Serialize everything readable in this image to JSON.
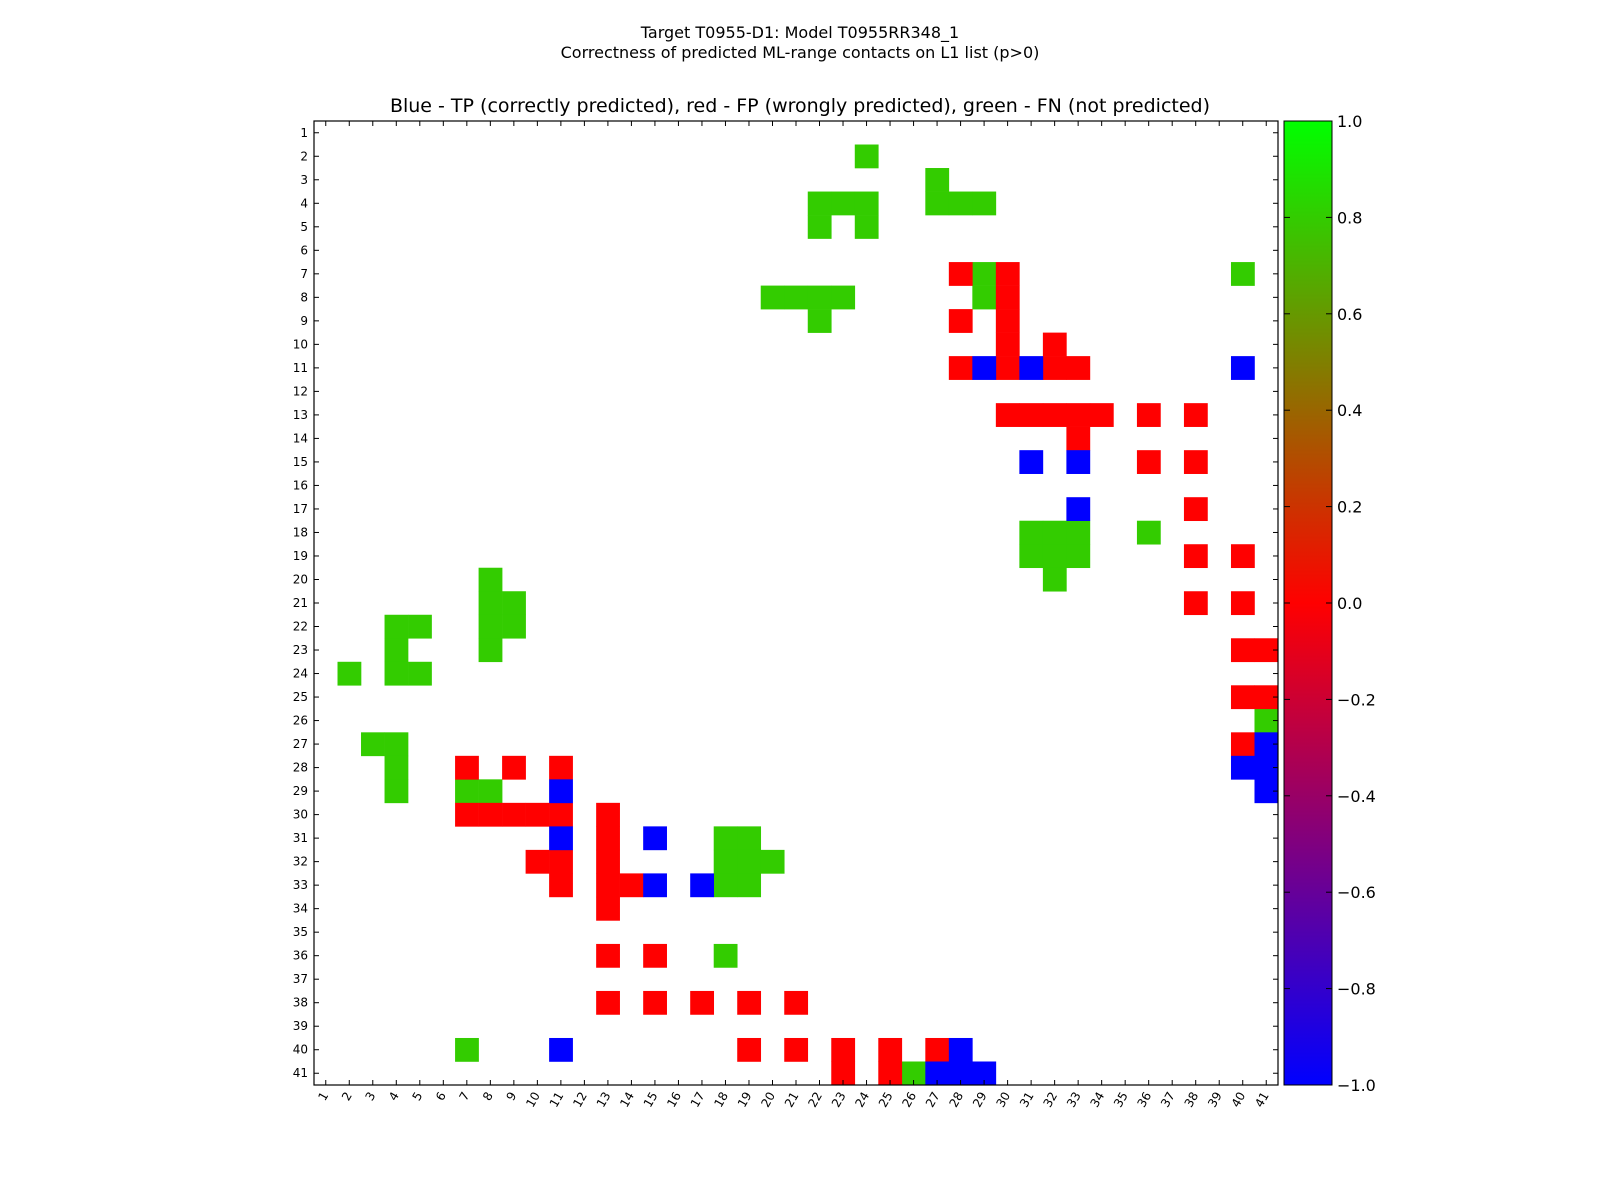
{
  "chart_data": {
    "type": "heatmap",
    "suptitle": "Target T0955-D1: Model T0955RR348_1",
    "subtitle": "Correctness of predicted ML-range contacts on L1 list (p>0)",
    "title": "Blue - TP (correctly predicted), red - FP (wrongly predicted), green - FN (not predicted)",
    "n": 41,
    "x_ticks": [
      "1",
      "2",
      "3",
      "4",
      "5",
      "6",
      "7",
      "8",
      "9",
      "10",
      "11",
      "12",
      "13",
      "14",
      "15",
      "16",
      "17",
      "18",
      "19",
      "20",
      "21",
      "22",
      "23",
      "24",
      "25",
      "26",
      "27",
      "28",
      "29",
      "30",
      "31",
      "32",
      "33",
      "34",
      "35",
      "36",
      "37",
      "38",
      "39",
      "40",
      "41"
    ],
    "y_ticks": [
      "1",
      "2",
      "3",
      "4",
      "5",
      "6",
      "7",
      "8",
      "9",
      "10",
      "11",
      "12",
      "13",
      "14",
      "15",
      "16",
      "17",
      "18",
      "19",
      "20",
      "21",
      "22",
      "23",
      "24",
      "25",
      "26",
      "27",
      "28",
      "29",
      "30",
      "31",
      "32",
      "33",
      "34",
      "35",
      "36",
      "37",
      "38",
      "39",
      "40",
      "41"
    ],
    "colorbar": {
      "min": -1.0,
      "max": 1.0,
      "ticks": [
        "1.0",
        "0.8",
        "0.6",
        "0.4",
        "0.2",
        "0.0",
        "−0.2",
        "−0.4",
        "−0.6",
        "−0.8",
        "−1.0"
      ],
      "stops": [
        {
          "value": -1.0,
          "color": "#0000ff"
        },
        {
          "value": 0.0,
          "color": "#ff0000"
        },
        {
          "value": 1.0,
          "color": "#00ff00"
        }
      ]
    },
    "categories": {
      "tp": {
        "label": "TP (correctly predicted)",
        "value": -1.0,
        "color": "#0000ff"
      },
      "fp": {
        "label": "FP (wrongly predicted)",
        "value": 0.0,
        "color": "#ff0000"
      },
      "fn": {
        "label": "FN (not predicted)",
        "value": 0.8,
        "color": "#33cc00"
      }
    },
    "cells": {
      "fn": [
        [
          2,
          24
        ],
        [
          3,
          27
        ],
        [
          4,
          22
        ],
        [
          4,
          23
        ],
        [
          4,
          24
        ],
        [
          4,
          27
        ],
        [
          4,
          28
        ],
        [
          4,
          29
        ],
        [
          5,
          22
        ],
        [
          5,
          24
        ],
        [
          7,
          29
        ],
        [
          7,
          40
        ],
        [
          8,
          20
        ],
        [
          8,
          21
        ],
        [
          8,
          22
        ],
        [
          8,
          23
        ],
        [
          8,
          29
        ],
        [
          9,
          22
        ],
        [
          18,
          31
        ],
        [
          18,
          32
        ],
        [
          18,
          33
        ],
        [
          18,
          36
        ],
        [
          19,
          31
        ],
        [
          19,
          32
        ],
        [
          19,
          33
        ],
        [
          20,
          32
        ],
        [
          20,
          8
        ],
        [
          21,
          8
        ],
        [
          21,
          9
        ],
        [
          22,
          4
        ],
        [
          22,
          5
        ],
        [
          22,
          8
        ],
        [
          22,
          9
        ],
        [
          23,
          4
        ],
        [
          23,
          8
        ],
        [
          24,
          2
        ],
        [
          24,
          4
        ],
        [
          24,
          5
        ],
        [
          26,
          41
        ],
        [
          27,
          3
        ],
        [
          27,
          4
        ],
        [
          28,
          4
        ],
        [
          29,
          4
        ],
        [
          29,
          7
        ],
        [
          29,
          8
        ],
        [
          31,
          18
        ],
        [
          31,
          19
        ],
        [
          32,
          18
        ],
        [
          32,
          19
        ],
        [
          32,
          20
        ],
        [
          33,
          18
        ],
        [
          33,
          19
        ],
        [
          36,
          18
        ],
        [
          40,
          7
        ],
        [
          41,
          26
        ]
      ],
      "fp": [
        [
          7,
          28
        ],
        [
          7,
          30
        ],
        [
          8,
          30
        ],
        [
          9,
          28
        ],
        [
          9,
          30
        ],
        [
          10,
          30
        ],
        [
          10,
          32
        ],
        [
          11,
          28
        ],
        [
          11,
          30
        ],
        [
          11,
          32
        ],
        [
          11,
          33
        ],
        [
          13,
          30
        ],
        [
          13,
          31
        ],
        [
          13,
          32
        ],
        [
          13,
          33
        ],
        [
          13,
          34
        ],
        [
          13,
          36
        ],
        [
          13,
          38
        ],
        [
          14,
          33
        ],
        [
          15,
          36
        ],
        [
          15,
          38
        ],
        [
          17,
          38
        ],
        [
          19,
          38
        ],
        [
          19,
          40
        ],
        [
          21,
          38
        ],
        [
          21,
          40
        ],
        [
          23,
          40
        ],
        [
          23,
          41
        ],
        [
          25,
          40
        ],
        [
          25,
          41
        ],
        [
          27,
          40
        ],
        [
          28,
          7
        ],
        [
          28,
          9
        ],
        [
          28,
          11
        ],
        [
          30,
          7
        ],
        [
          30,
          8
        ],
        [
          30,
          9
        ],
        [
          30,
          10
        ],
        [
          30,
          11
        ],
        [
          30,
          13
        ],
        [
          31,
          13
        ],
        [
          32,
          10
        ],
        [
          32,
          11
        ],
        [
          32,
          13
        ],
        [
          33,
          11
        ],
        [
          33,
          13
        ],
        [
          33,
          14
        ],
        [
          34,
          13
        ],
        [
          36,
          13
        ],
        [
          36,
          15
        ],
        [
          38,
          13
        ],
        [
          38,
          15
        ],
        [
          38,
          17
        ],
        [
          38,
          19
        ],
        [
          38,
          21
        ],
        [
          40,
          19
        ],
        [
          40,
          21
        ],
        [
          40,
          23
        ],
        [
          40,
          25
        ],
        [
          40,
          27
        ],
        [
          41,
          23
        ],
        [
          41,
          25
        ]
      ],
      "tp": [
        [
          11,
          29
        ],
        [
          11,
          31
        ],
        [
          11,
          40
        ],
        [
          15,
          31
        ],
        [
          15,
          33
        ],
        [
          17,
          33
        ],
        [
          27,
          41
        ],
        [
          28,
          40
        ],
        [
          28,
          41
        ],
        [
          29,
          41
        ],
        [
          29,
          11
        ],
        [
          31,
          11
        ],
        [
          31,
          15
        ],
        [
          33,
          15
        ],
        [
          33,
          17
        ],
        [
          40,
          11
        ],
        [
          40,
          28
        ],
        [
          41,
          27
        ],
        [
          41,
          28
        ],
        [
          41,
          29
        ]
      ]
    }
  }
}
